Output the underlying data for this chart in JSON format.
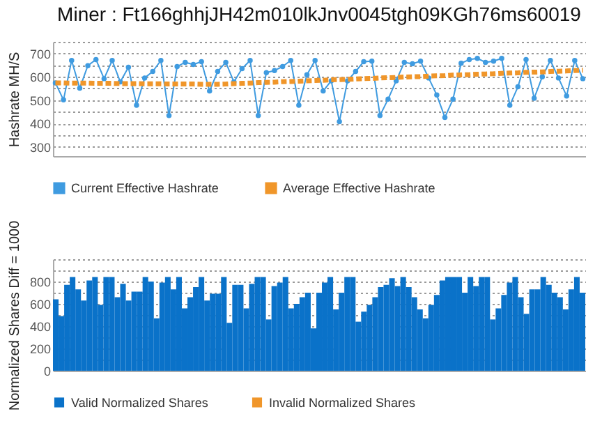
{
  "chart_data": [
    {
      "type": "line",
      "title": "Miner : Ft166ghhjJH42m010lkJnv0045tgh09KGh76ms60019",
      "ylabel": "Hashrate  MH/S",
      "categories": [
        null,
        null,
        null,
        null,
        null,
        null,
        null,
        null,
        null,
        null,
        null,
        null,
        null,
        null,
        null,
        null,
        null,
        null,
        null,
        null,
        null,
        null,
        null,
        null,
        null,
        null,
        null,
        null,
        null,
        null,
        null,
        null,
        null,
        null,
        null,
        null,
        null,
        null,
        null,
        null,
        null,
        null,
        null,
        null,
        null,
        null,
        null,
        null,
        null,
        null,
        null,
        null,
        null,
        null,
        null,
        null,
        null,
        null,
        null,
        null,
        null,
        null,
        null,
        null,
        null,
        null
      ],
      "series": [
        {
          "name": "Current Effective Hashrate",
          "color": "#3f9be0",
          "marker": "circle",
          "values": [
            574,
            501,
            670,
            551,
            648,
            674,
            592,
            670,
            578,
            641,
            478,
            595,
            623,
            670,
            434,
            644,
            662,
            653,
            665,
            539,
            623,
            662,
            578,
            635,
            670,
            434,
            618,
            627,
            644,
            670,
            478,
            609,
            670,
            539,
            583,
            408,
            583,
            623,
            665,
            667,
            434,
            504,
            583,
            662,
            656,
            667,
            595,
            522,
            426,
            504,
            658,
            674,
            679,
            662,
            667,
            679,
            478,
            557,
            674,
            508,
            600,
            670,
            595,
            518,
            670,
            592
          ]
        },
        {
          "name": "Average Effective Hashrate",
          "color": "#f0962a",
          "marker": "none",
          "line_style": "dashed",
          "values": [
            574,
            574,
            573,
            573,
            573,
            572,
            572,
            572,
            571,
            571,
            571,
            570,
            570,
            570,
            569,
            569,
            569,
            569,
            568,
            568,
            568,
            569,
            571,
            572,
            573,
            575,
            576,
            577,
            579,
            580,
            581,
            583,
            584,
            585,
            587,
            588,
            589,
            591,
            592,
            593,
            595,
            596,
            597,
            599,
            600,
            601,
            603,
            604,
            605,
            607,
            608,
            609,
            611,
            612,
            613,
            615,
            616,
            617,
            619,
            620,
            621,
            623,
            624,
            625,
            627,
            628
          ]
        }
      ],
      "ylim": [
        260,
        750
      ],
      "yticks": [
        300,
        {
          "value": 350,
          "label": null
        },
        400,
        {
          "value": 450,
          "label": null
        },
        500,
        {
          "value": 550,
          "label": null
        },
        600,
        {
          "value": 650,
          "label": null
        },
        700,
        {
          "value": 750,
          "label": null
        }
      ],
      "grid": "y",
      "legend": "bottom",
      "tick_labels": "y"
    },
    {
      "type": "bar",
      "ylabel": "Normalized Shares  Diff = 1000",
      "categories": [
        null,
        null,
        null,
        null,
        null,
        null,
        null,
        null,
        null,
        null,
        null,
        null,
        null,
        null,
        null,
        null,
        null,
        null,
        null,
        null,
        null,
        null,
        null,
        null,
        null,
        null,
        null,
        null,
        null,
        null,
        null,
        null,
        null,
        null,
        null,
        null,
        null,
        null,
        null,
        null,
        null,
        null,
        null,
        null,
        null,
        null,
        null,
        null,
        null,
        null,
        null,
        null,
        null,
        null,
        null,
        null,
        null,
        null,
        null,
        null,
        null,
        null,
        null,
        null,
        null,
        null,
        null,
        null,
        null,
        null,
        null,
        null,
        null,
        null,
        null,
        null,
        null,
        null,
        null,
        null,
        null,
        null,
        null,
        null,
        null,
        null,
        null,
        null,
        null,
        null,
        null,
        null,
        null,
        null,
        null
      ],
      "series": [
        {
          "name": "Valid Normalized Shares",
          "color": "#0a72c9",
          "values": [
            640,
            490,
            770,
            840,
            730,
            630,
            810,
            840,
            590,
            840,
            840,
            660,
            780,
            630,
            710,
            710,
            840,
            800,
            470,
            790,
            840,
            730,
            840,
            560,
            660,
            750,
            840,
            630,
            690,
            690,
            840,
            430,
            770,
            770,
            560,
            780,
            840,
            840,
            460,
            760,
            790,
            840,
            560,
            600,
            660,
            700,
            380,
            700,
            790,
            840,
            550,
            700,
            840,
            840,
            440,
            530,
            590,
            660,
            750,
            770,
            830,
            760,
            840,
            750,
            660,
            550,
            470,
            590,
            680,
            810,
            840,
            840,
            840,
            700,
            840,
            760,
            840,
            840,
            460,
            560,
            680,
            790,
            840,
            660,
            510,
            730,
            730,
            840,
            770,
            700,
            660,
            550,
            730,
            840,
            700
          ]
        },
        {
          "name": "Invalid Normalized Shares",
          "color": "#f0962a",
          "values": [
            0,
            0,
            0,
            0,
            0,
            0,
            0,
            0,
            0,
            0,
            0,
            0,
            0,
            0,
            0,
            0,
            0,
            0,
            0,
            0,
            0,
            0,
            0,
            0,
            0,
            0,
            0,
            0,
            0,
            0,
            0,
            0,
            0,
            0,
            0,
            0,
            0,
            0,
            0,
            0,
            0,
            0,
            0,
            0,
            0,
            0,
            0,
            0,
            0,
            0,
            0,
            0,
            0,
            0,
            0,
            0,
            0,
            0,
            0,
            0,
            0,
            0,
            0,
            0,
            0,
            0,
            0,
            0,
            0,
            0,
            0,
            0,
            0,
            0,
            0,
            0,
            0,
            0,
            0,
            0,
            0,
            0,
            0,
            0,
            0,
            0,
            0,
            0,
            0,
            0,
            0,
            0,
            0,
            0,
            0
          ]
        }
      ],
      "ylim": [
        0,
        1000
      ],
      "yticks": [
        0,
        {
          "value": 100,
          "label": null
        },
        200,
        {
          "value": 300,
          "label": null
        },
        400,
        {
          "value": 500,
          "label": null
        },
        600,
        {
          "value": 700,
          "label": null
        },
        800,
        {
          "value": 900,
          "label": null
        },
        {
          "value": 1000,
          "label": null
        }
      ],
      "grid": "y",
      "legend": "bottom",
      "tick_labels": "y"
    }
  ]
}
